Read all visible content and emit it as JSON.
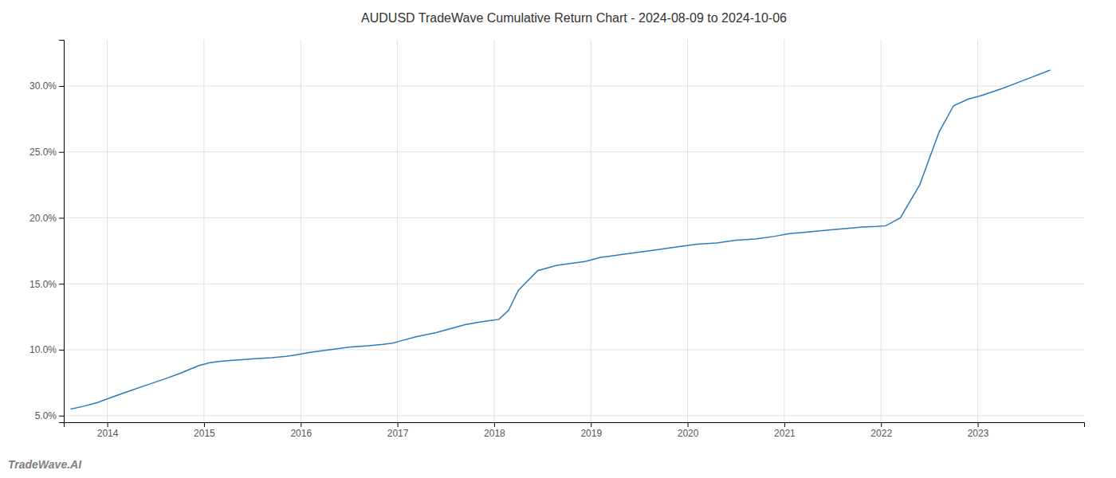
{
  "chart_data": {
    "type": "line",
    "title": "AUDUSD TradeWave Cumulative Return Chart - 2024-08-09 to 2024-10-06",
    "annotations": [
      "TradeWave.AI"
    ],
    "color": "#2b7bba",
    "grid": true,
    "x": [
      2013.62,
      2013.75,
      2013.9,
      2014.05,
      2014.2,
      2014.4,
      2014.6,
      2014.75,
      2014.85,
      2014.95,
      2015.05,
      2015.15,
      2015.3,
      2015.5,
      2015.7,
      2015.85,
      2015.95,
      2016.1,
      2016.3,
      2016.5,
      2016.7,
      2016.85,
      2016.95,
      2017.05,
      2017.2,
      2017.4,
      2017.55,
      2017.7,
      2017.85,
      2017.95,
      2018.05,
      2018.15,
      2018.25,
      2018.45,
      2018.65,
      2018.85,
      2018.95,
      2019.1,
      2019.3,
      2019.5,
      2019.7,
      2019.9,
      2020.1,
      2020.3,
      2020.5,
      2020.7,
      2020.9,
      2021.05,
      2021.2,
      2021.35,
      2021.5,
      2021.65,
      2021.8,
      2021.95,
      2022.05,
      2022.2,
      2022.4,
      2022.6,
      2022.75,
      2022.9,
      2023.05,
      2023.25,
      2023.5,
      2023.75
    ],
    "values": [
      5.5,
      5.7,
      6.0,
      6.4,
      6.8,
      7.3,
      7.8,
      8.2,
      8.5,
      8.8,
      9.0,
      9.1,
      9.2,
      9.3,
      9.4,
      9.5,
      9.6,
      9.8,
      10.0,
      10.2,
      10.3,
      10.4,
      10.5,
      10.7,
      11.0,
      11.3,
      11.6,
      11.9,
      12.1,
      12.2,
      12.3,
      13.0,
      14.5,
      16.0,
      16.4,
      16.6,
      16.7,
      17.0,
      17.2,
      17.4,
      17.6,
      17.8,
      18.0,
      18.1,
      18.3,
      18.4,
      18.6,
      18.8,
      18.9,
      19.0,
      19.1,
      19.2,
      19.3,
      19.35,
      19.4,
      20.0,
      22.5,
      26.5,
      28.5,
      29.0,
      29.3,
      29.8,
      30.5,
      31.2
    ],
    "xlim": [
      2013.55,
      2024.1
    ],
    "ylim": [
      4.5,
      33.5
    ],
    "xticks": [
      2014,
      2015,
      2016,
      2017,
      2018,
      2019,
      2020,
      2021,
      2022,
      2023
    ],
    "yticks": [
      {
        "value": 5.0,
        "label": "5.0%"
      },
      {
        "value": 10.0,
        "label": "10.0%"
      },
      {
        "value": 15.0,
        "label": "15.0%"
      },
      {
        "value": 20.0,
        "label": "20.0%"
      },
      {
        "value": 25.0,
        "label": "25.0%"
      },
      {
        "value": 30.0,
        "label": "30.0%"
      }
    ]
  }
}
